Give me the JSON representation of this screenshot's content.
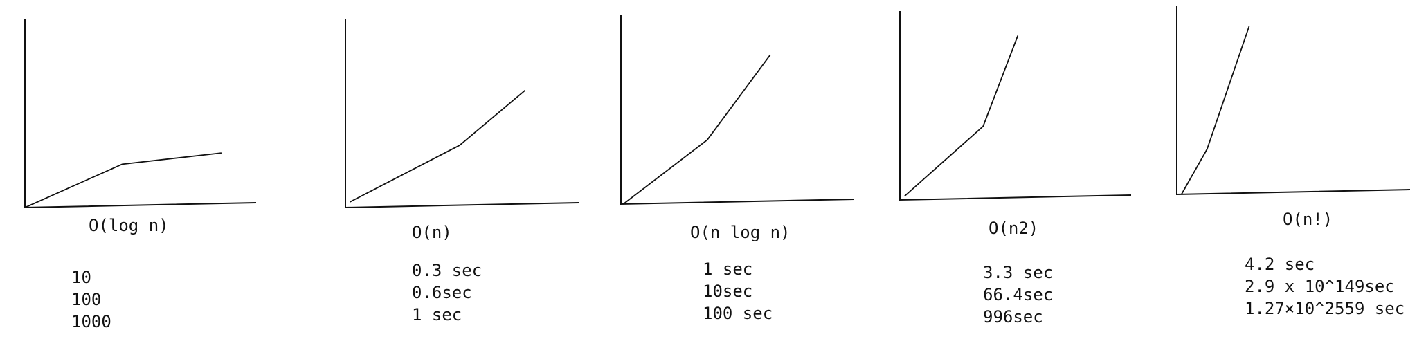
{
  "panels": [
    {
      "label": "O(log n)",
      "values": [
        "10",
        "100",
        "1000"
      ],
      "curve": [
        [
          0,
          0
        ],
        [
          0.42,
          0.23
        ],
        [
          0.85,
          0.29
        ]
      ]
    },
    {
      "label": "O(n)",
      "values": [
        "0.3 sec",
        "0.6sec",
        "1 sec"
      ],
      "curve": [
        [
          0.02,
          0.03
        ],
        [
          0.49,
          0.33
        ],
        [
          0.77,
          0.62
        ]
      ]
    },
    {
      "label": "O(n log n)",
      "values": [
        "1 sec",
        "10sec",
        "100 sec"
      ],
      "curve": [
        [
          0.01,
          0.0
        ],
        [
          0.37,
          0.34
        ],
        [
          0.64,
          0.79
        ]
      ]
    },
    {
      "label": "O(n2)",
      "values": [
        "3.3 sec",
        "66.4sec",
        "996sec"
      ],
      "curve": [
        [
          0.02,
          0.02
        ],
        [
          0.36,
          0.39
        ],
        [
          0.51,
          0.87
        ]
      ]
    },
    {
      "label": "O(n!)",
      "values": [
        "4.2 sec",
        "2.9 x 10^149sec",
        "1.27×10^2559 sec"
      ],
      "curve": [
        [
          0.02,
          0.0
        ],
        [
          0.13,
          0.24
        ],
        [
          0.31,
          0.89
        ]
      ]
    }
  ]
}
